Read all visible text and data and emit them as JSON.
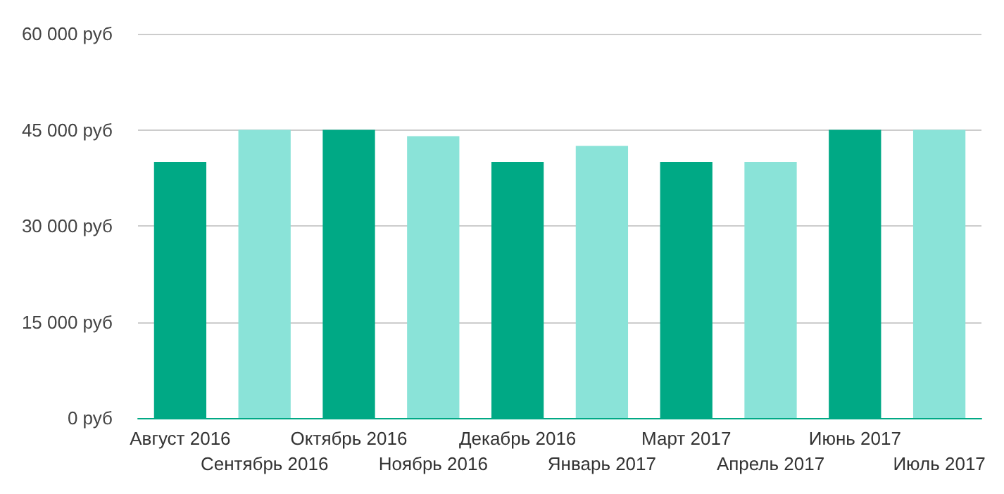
{
  "chart_data": {
    "type": "bar",
    "categories": [
      "Август 2016",
      "Сентябрь 2016",
      "Октябрь 2016",
      "Ноябрь 2016",
      "Декабрь 2016",
      "Январь 2017",
      "Март 2017",
      "Апрель 2017",
      "Июнь 2017",
      "Июль 2017"
    ],
    "values": [
      40000,
      45000,
      45000,
      44000,
      40000,
      42500,
      40000,
      40000,
      45000,
      45000
    ],
    "colors": [
      "#00a985",
      "#8ae3d8",
      "#00a985",
      "#8ae3d8",
      "#00a985",
      "#8ae3d8",
      "#00a985",
      "#8ae3d8",
      "#00a985",
      "#8ae3d8"
    ],
    "ylim": [
      0,
      60000
    ],
    "yticks": [
      {
        "value": 0,
        "label": "0 руб"
      },
      {
        "value": 15000,
        "label": "15 000 руб"
      },
      {
        "value": 30000,
        "label": "30 000 руб"
      },
      {
        "value": 45000,
        "label": "45 000 руб"
      },
      {
        "value": 60000,
        "label": "60 000 руб"
      }
    ],
    "grid": "y"
  }
}
